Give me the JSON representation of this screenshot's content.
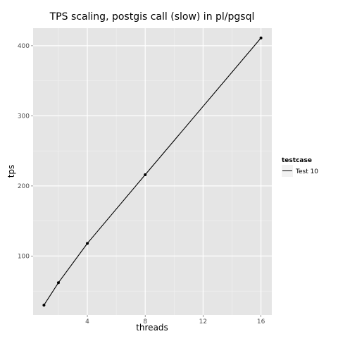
{
  "chart_data": {
    "type": "line",
    "title": "TPS scaling, postgis call (slow) in pl/pgsql",
    "xlabel": "threads",
    "ylabel": "tps",
    "xlim": [
      0.25,
      16.75
    ],
    "ylim": [
      16,
      425
    ],
    "x_ticks": [
      4,
      8,
      12,
      16
    ],
    "x_minor": [
      2,
      6,
      10,
      14
    ],
    "y_ticks": [
      100,
      200,
      300,
      400
    ],
    "y_minor": [
      50,
      150,
      250,
      350
    ],
    "grid": true,
    "legend": {
      "title": "testcase",
      "position": "right"
    },
    "series": [
      {
        "name": "Test 10",
        "color": "#000000",
        "x": [
          1,
          2,
          4,
          8,
          16
        ],
        "y": [
          30,
          62,
          118,
          216,
          411
        ]
      }
    ]
  },
  "colors": {
    "panel": "#e5e5e5",
    "grid_major": "#ffffff",
    "grid_minor": "#f2f2f2",
    "line": "#000000"
  }
}
